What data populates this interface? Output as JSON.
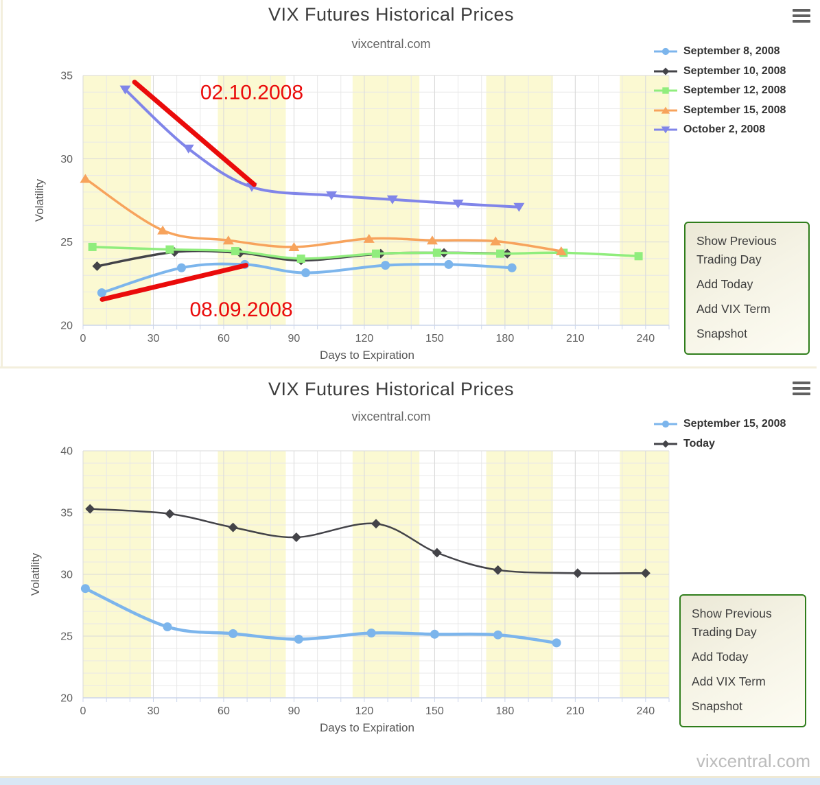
{
  "page": {
    "footer_brand": "vixcentral.com",
    "colors": {
      "container_border": "#f3efdd",
      "bottom_bar": "#d9e7f5",
      "menu_border": "#2f7d1b",
      "grid_minor": "#e8e8e8",
      "grid_major": "#d9d9d9",
      "axis_line": "#ccd6eb"
    }
  },
  "charts": [
    {
      "menu_items": [
        "Show Previous Trading Day",
        "Add Today",
        "Add VIX Term",
        "Snapshot"
      ]
    },
    {
      "menu_items": [
        "Show Previous Trading Day",
        "Add Today",
        "Add VIX Term",
        "Snapshot"
      ]
    }
  ],
  "chart_data": [
    {
      "type": "line",
      "title": "VIX Futures Historical Prices",
      "subtitle": "vixcentral.com",
      "xlabel": "Days to Expiration",
      "ylabel": "Volatility",
      "xlim": [
        0,
        250
      ],
      "ylim": [
        20,
        35
      ],
      "xticks": [
        0,
        30,
        60,
        90,
        120,
        150,
        180,
        210,
        240
      ],
      "yticks": [
        20,
        25,
        30,
        35
      ],
      "minor_x_step": 10,
      "minor_y_step": 1,
      "grid": true,
      "legend_position": "top-right",
      "band_color": "#fbf9d2",
      "plot_bands_x": [
        [
          0,
          29
        ],
        [
          57.5,
          86.5
        ],
        [
          115,
          143.5
        ],
        [
          172,
          200.5
        ],
        [
          229,
          250
        ]
      ],
      "series": [
        {
          "name": "September 8, 2008",
          "color": "#7cb5ec",
          "marker": "circle",
          "line_width": 4,
          "points": [
            [
              8,
              21.95
            ],
            [
              42,
              23.45
            ],
            [
              69,
              23.65
            ],
            [
              95,
              23.15
            ],
            [
              129,
              23.6
            ],
            [
              156,
              23.65
            ],
            [
              183,
              23.45
            ]
          ]
        },
        {
          "name": "September 10, 2008",
          "color": "#434348",
          "marker": "diamond",
          "line_width": 3.5,
          "points": [
            [
              6,
              23.55
            ],
            [
              39,
              24.4
            ],
            [
              67,
              24.35
            ],
            [
              93,
              23.9
            ],
            [
              127,
              24.3
            ],
            [
              154,
              24.35
            ],
            [
              181,
              24.3
            ]
          ]
        },
        {
          "name": "September 12, 2008",
          "color": "#90ed7d",
          "marker": "square",
          "line_width": 3.5,
          "points": [
            [
              4,
              24.7
            ],
            [
              37,
              24.55
            ],
            [
              65,
              24.45
            ],
            [
              93,
              24.0
            ],
            [
              125,
              24.3
            ],
            [
              151,
              24.35
            ],
            [
              178,
              24.3
            ],
            [
              205,
              24.35
            ],
            [
              237,
              24.15
            ]
          ]
        },
        {
          "name": "September 15, 2008",
          "color": "#f7a35c",
          "marker": "triangle",
          "line_width": 3.5,
          "points": [
            [
              1,
              28.8
            ],
            [
              34,
              25.7
            ],
            [
              62,
              25.1
            ],
            [
              90,
              24.7
            ],
            [
              122,
              25.2
            ],
            [
              149,
              25.1
            ],
            [
              176,
              25.05
            ],
            [
              204,
              24.45
            ]
          ]
        },
        {
          "name": "October 2, 2008",
          "color": "#8085e9",
          "marker": "triangle-down",
          "line_width": 4,
          "points": [
            [
              18,
              34.15
            ],
            [
              45,
              30.6
            ],
            [
              72,
              28.3
            ],
            [
              106,
              27.8
            ],
            [
              132,
              27.55
            ],
            [
              160,
              27.3
            ],
            [
              186,
              27.1
            ]
          ]
        }
      ],
      "annotations": {
        "color": "#ea0b0b",
        "lines": [
          {
            "x1": 22,
            "y1": 34.6,
            "x2": 73,
            "y2": 28.45
          },
          {
            "x1": 8.2,
            "y1": 21.55,
            "x2": 69.5,
            "y2": 23.6
          }
        ],
        "labels": [
          {
            "text": "02.10.2008",
            "x": 72,
            "y": 34.0
          },
          {
            "text": "08.09.2008",
            "x": 67.5,
            "y": 20.95
          }
        ]
      }
    },
    {
      "type": "line",
      "title": "VIX Futures Historical Prices",
      "subtitle": "vixcentral.com",
      "xlabel": "Days to Expiration",
      "ylabel": "Volatility",
      "xlim": [
        0,
        250
      ],
      "ylim": [
        20,
        40
      ],
      "xticks": [
        0,
        30,
        60,
        90,
        120,
        150,
        180,
        210,
        240
      ],
      "yticks": [
        20,
        25,
        30,
        35,
        40
      ],
      "minor_x_step": 10,
      "minor_y_step": 1,
      "grid": true,
      "legend_position": "top-right",
      "band_color": "#fbf9d2",
      "plot_bands_x": [
        [
          0,
          29
        ],
        [
          57.5,
          86.5
        ],
        [
          115,
          143.5
        ],
        [
          172,
          200.5
        ],
        [
          229,
          250
        ]
      ],
      "series": [
        {
          "name": "September 15, 2008",
          "color": "#7cb5ec",
          "marker": "circle",
          "line_width": 4.5,
          "points": [
            [
              1,
              28.85
            ],
            [
              36,
              25.75
            ],
            [
              64,
              25.2
            ],
            [
              92,
              24.75
            ],
            [
              123,
              25.25
            ],
            [
              150,
              25.15
            ],
            [
              177,
              25.1
            ],
            [
              202,
              24.45
            ]
          ]
        },
        {
          "name": "Today",
          "color": "#434348",
          "marker": "diamond",
          "line_width": 2.5,
          "points": [
            [
              3,
              35.3
            ],
            [
              37,
              34.9
            ],
            [
              64,
              33.8
            ],
            [
              91,
              33.0
            ],
            [
              125,
              34.1
            ],
            [
              151,
              31.75
            ],
            [
              177,
              30.35
            ],
            [
              211,
              30.1
            ],
            [
              240,
              30.1
            ]
          ]
        }
      ]
    }
  ]
}
